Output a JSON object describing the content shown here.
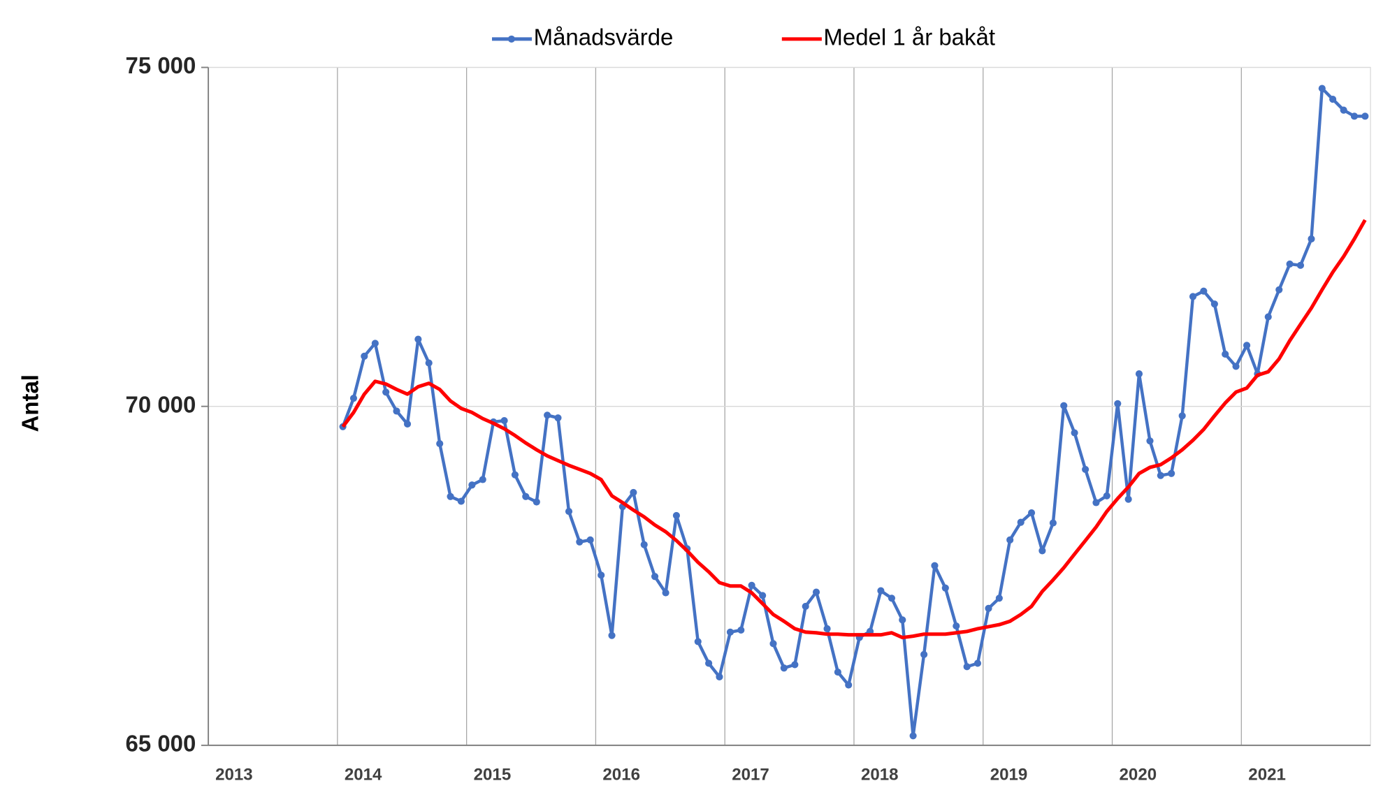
{
  "chart_data": {
    "type": "line",
    "ylabel": "Antal",
    "x": [
      2014.042,
      2014.125,
      2014.208,
      2014.292,
      2014.375,
      2014.458,
      2014.542,
      2014.625,
      2014.708,
      2014.792,
      2014.875,
      2014.958,
      2015.042,
      2015.125,
      2015.208,
      2015.292,
      2015.375,
      2015.458,
      2015.542,
      2015.625,
      2015.708,
      2015.792,
      2015.875,
      2015.958,
      2016.042,
      2016.125,
      2016.208,
      2016.292,
      2016.375,
      2016.458,
      2016.542,
      2016.625,
      2016.708,
      2016.792,
      2016.875,
      2016.958,
      2017.042,
      2017.125,
      2017.208,
      2017.292,
      2017.375,
      2017.458,
      2017.542,
      2017.625,
      2017.708,
      2017.792,
      2017.875,
      2017.958,
      2018.042,
      2018.125,
      2018.208,
      2018.292,
      2018.375,
      2018.458,
      2018.542,
      2018.625,
      2018.708,
      2018.792,
      2018.875,
      2018.958,
      2019.042,
      2019.125,
      2019.208,
      2019.292,
      2019.375,
      2019.458,
      2019.542,
      2019.625,
      2019.708,
      2019.792,
      2019.875,
      2019.958,
      2020.042,
      2020.125,
      2020.208,
      2020.292,
      2020.375,
      2020.458,
      2020.542,
      2020.625,
      2020.708,
      2020.792,
      2020.875,
      2020.958,
      2021.042,
      2021.125,
      2021.208,
      2021.292,
      2021.375,
      2021.458,
      2021.542,
      2021.625,
      2021.708,
      2021.792,
      2021.875,
      2021.958
    ],
    "series": [
      {
        "name": "Månadsvärde",
        "color": "#4472c4",
        "marker": true,
        "values": [
          69700,
          70120,
          70740,
          70930,
          70210,
          69930,
          69740,
          70990,
          70640,
          69450,
          68670,
          68600,
          68840,
          68920,
          69770,
          69790,
          68990,
          68670,
          68590,
          69870,
          69830,
          68450,
          68000,
          68030,
          67510,
          66620,
          68520,
          68730,
          67960,
          67490,
          67250,
          68390,
          67900,
          66530,
          66210,
          66010,
          66670,
          66700,
          67360,
          67210,
          66500,
          66140,
          66190,
          67050,
          67260,
          66720,
          66080,
          65890,
          66590,
          66680,
          67280,
          67170,
          66850,
          65140,
          66340,
          67650,
          67320,
          66760,
          66160,
          66210,
          67020,
          67170,
          68030,
          68290,
          68430,
          67870,
          68280,
          70010,
          69610,
          69070,
          68580,
          68680,
          70040,
          68630,
          70480,
          69490,
          68980,
          69010,
          69860,
          71620,
          71700,
          71510,
          70770,
          70590,
          70900,
          70480,
          71320,
          71720,
          72100,
          72080,
          72470,
          74690,
          74530,
          74370,
          74280,
          74280
        ]
      },
      {
        "name": "Medel 1 år bakåt",
        "color": "#ff0000",
        "marker": false,
        "values": [
          69700,
          69910,
          70180,
          70370,
          70330,
          70250,
          70180,
          70290,
          70340,
          70250,
          70080,
          69970,
          69910,
          69820,
          69750,
          69670,
          69570,
          69460,
          69360,
          69270,
          69200,
          69130,
          69070,
          69010,
          68920,
          68680,
          68580,
          68470,
          68370,
          68250,
          68150,
          68020,
          67870,
          67700,
          67560,
          67400,
          67350,
          67350,
          67250,
          67090,
          66930,
          66830,
          66720,
          66670,
          66660,
          66640,
          66640,
          66630,
          66630,
          66630,
          66630,
          66660,
          66590,
          66610,
          66640,
          66640,
          66640,
          66660,
          66680,
          66720,
          66750,
          66780,
          66830,
          66930,
          67050,
          67270,
          67440,
          67620,
          67820,
          68020,
          68220,
          68450,
          68640,
          68810,
          69010,
          69100,
          69140,
          69240,
          69360,
          69500,
          69660,
          69860,
          70050,
          70210,
          70270,
          70460,
          70510,
          70700,
          70970,
          71210,
          71450,
          71720,
          71980,
          72210,
          72470,
          72750
        ]
      }
    ],
    "xlim": [
      2013,
      2022
    ],
    "xticks": [
      2013,
      2014,
      2015,
      2016,
      2017,
      2018,
      2019,
      2020,
      2021
    ],
    "ylim": [
      65000,
      75000
    ],
    "yticks": [
      {
        "value": 65000,
        "label": "65 000"
      },
      {
        "value": 70000,
        "label": "70 000"
      },
      {
        "value": 75000,
        "label": "75 000"
      }
    ],
    "grid": true,
    "legend": "top"
  }
}
